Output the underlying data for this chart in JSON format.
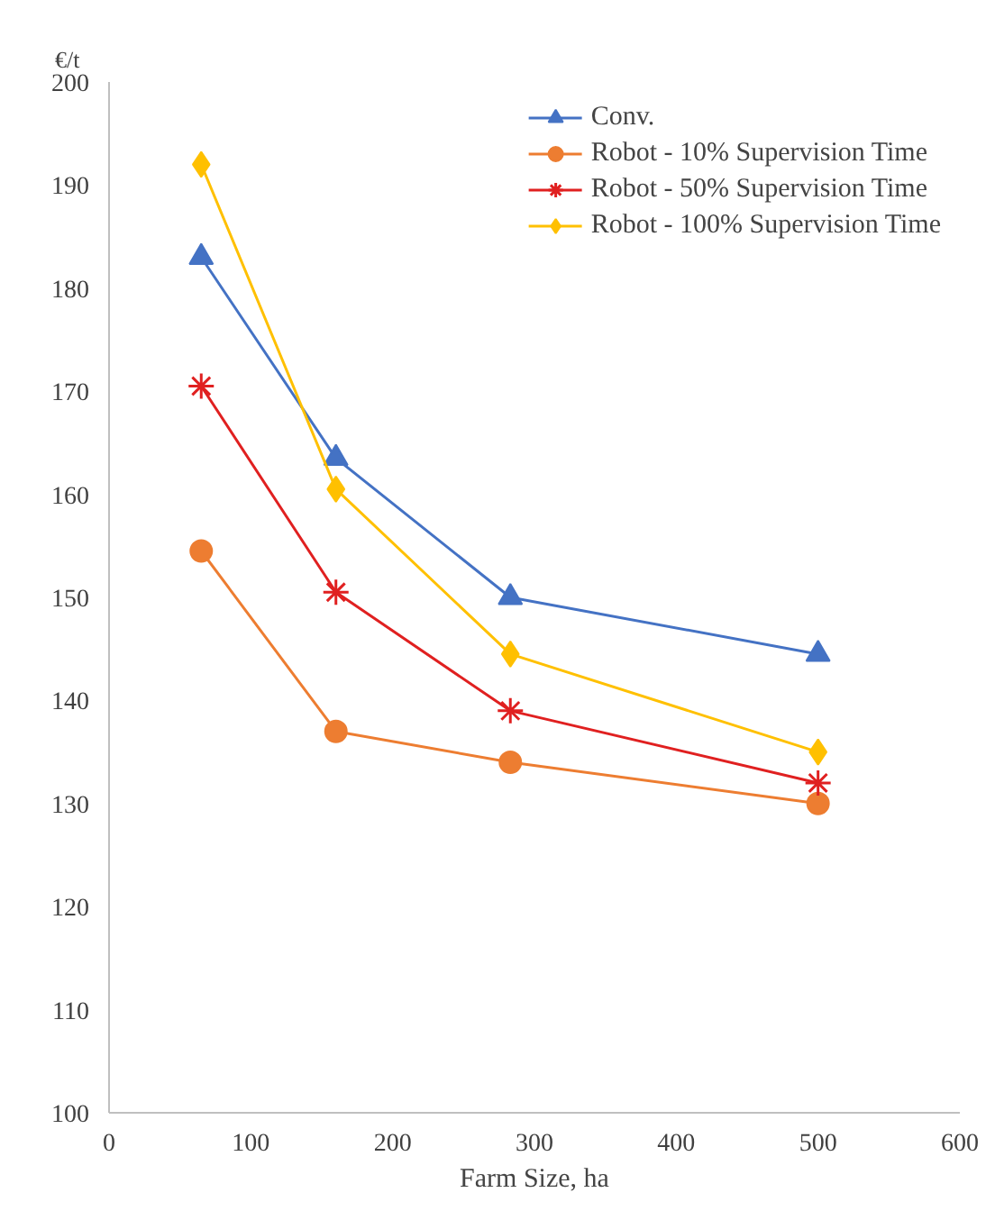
{
  "chart_data": {
    "type": "line",
    "xlabel": "Farm Size, ha",
    "ylabel": "€/t",
    "xlim": [
      0,
      600
    ],
    "xticks": [
      0,
      100,
      200,
      300,
      400,
      500,
      600
    ],
    "ylim": [
      100,
      200
    ],
    "yticks": [
      100,
      110,
      120,
      130,
      140,
      150,
      160,
      170,
      180,
      190,
      200
    ],
    "grid": false,
    "legend": "top right",
    "x": [
      65,
      160,
      283,
      500
    ],
    "series": [
      {
        "name": "Conv.",
        "color": "#4472c4",
        "marker": "triangle",
        "values": [
          183,
          163.5,
          150,
          144.5
        ]
      },
      {
        "name": "Robot - 10% Supervision Time",
        "color": "#ed7d31",
        "marker": "circle",
        "values": [
          154.5,
          137,
          134,
          130
        ]
      },
      {
        "name": "Robot - 50% Supervision Time",
        "color": "#e02020",
        "marker": "cross",
        "values": [
          170.5,
          150.5,
          139,
          132
        ]
      },
      {
        "name": "Robot - 100% Supervision Time",
        "color": "#ffc000",
        "marker": "diamond",
        "values": [
          192,
          160.5,
          144.5,
          135
        ]
      }
    ]
  }
}
